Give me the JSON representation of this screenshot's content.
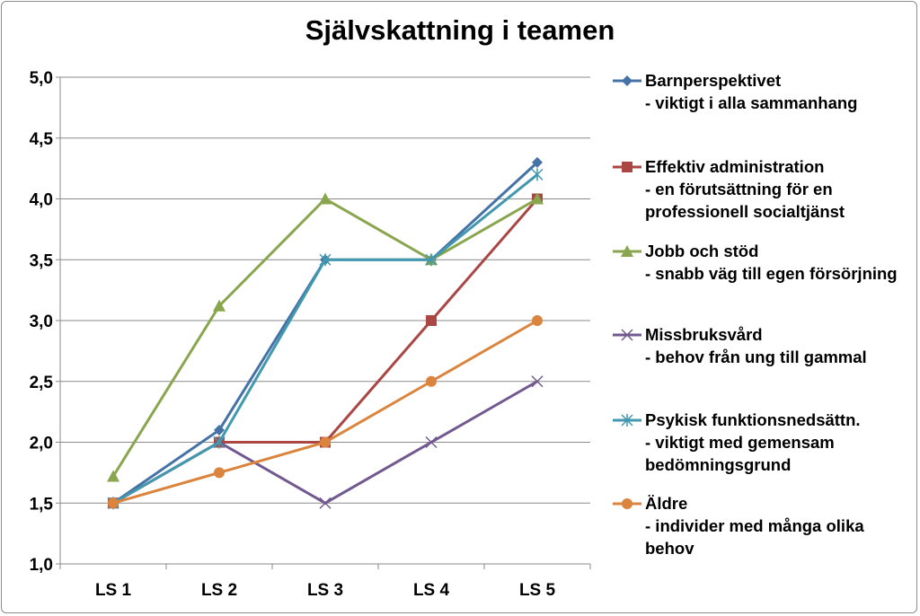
{
  "chart_data": {
    "type": "line",
    "title": "Självskattning i teamen",
    "xlabel": "",
    "ylabel": "",
    "categories": [
      "LS 1",
      "LS 2",
      "LS 3",
      "LS 4",
      "LS 5"
    ],
    "ylim": [
      1.0,
      5.0
    ],
    "ytick_step": 0.5,
    "ytick_labels": [
      "1,0",
      "1,5",
      "2,0",
      "2,5",
      "3,0",
      "3,5",
      "4,0",
      "4,5",
      "5,0"
    ],
    "grid": true,
    "legend_position": "right",
    "series": [
      {
        "name": "Barnperspektivet - viktigt i alla sammanhang",
        "lines": [
          "Barnperspektivet",
          "- viktigt i alla sammanhang"
        ],
        "color": "#4572A7",
        "marker": "diamond",
        "values": [
          1.5,
          2.1,
          3.5,
          3.5,
          4.3
        ]
      },
      {
        "name": "Effektiv administration - en förutsättning för en professionell socialtjänst",
        "lines": [
          "Effektiv administration",
          "- en förutsättning för en",
          "professionell socialtjänst"
        ],
        "color": "#AA4643",
        "marker": "square",
        "values": [
          1.5,
          2.0,
          2.0,
          3.0,
          4.0
        ]
      },
      {
        "name": "Jobb och stöd - snabb väg till egen försörjning",
        "lines": [
          "Jobb och stöd",
          "- snabb väg till egen försörjning"
        ],
        "color": "#89A54E",
        "marker": "triangle",
        "values": [
          1.72,
          3.12,
          4.0,
          3.5,
          4.0
        ]
      },
      {
        "name": "Missbruksvård - behov från ung till gammal",
        "lines": [
          "Missbruksvård",
          "- behov från ung till gammal"
        ],
        "color": "#71588F",
        "marker": "x",
        "values": [
          1.5,
          2.0,
          1.5,
          2.0,
          2.5
        ]
      },
      {
        "name": "Psykisk funktionsnedsättn. - viktigt med gemensam bedömningsgrund",
        "lines": [
          "Psykisk funktionsnedsättn.",
          "- viktigt med gemensam",
          "bedömningsgrund"
        ],
        "color": "#4198AF",
        "marker": "star",
        "values": [
          1.5,
          2.0,
          3.5,
          3.5,
          4.2
        ]
      },
      {
        "name": "Äldre - individer med många olika behov",
        "lines": [
          "Äldre",
          "- individer med många olika",
          "behov"
        ],
        "color": "#DB843D",
        "marker": "circle",
        "values": [
          1.5,
          1.75,
          2.0,
          2.5,
          3.0
        ]
      }
    ]
  }
}
